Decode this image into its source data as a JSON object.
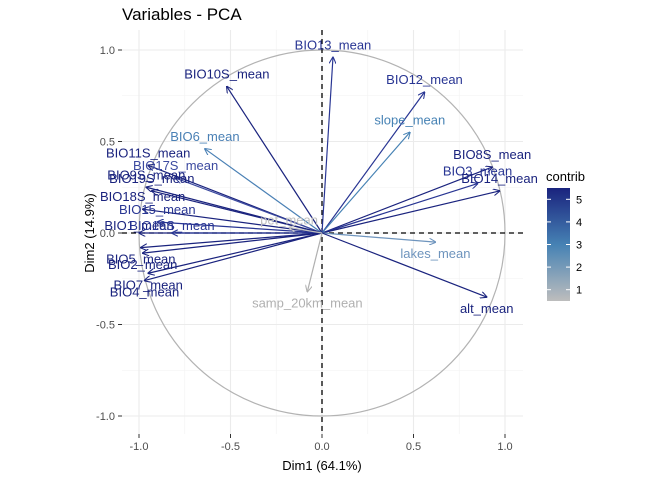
{
  "chart_data": {
    "type": "scatter",
    "subtype": "pca-variable-correlation-circle",
    "title": "Variables - PCA",
    "xlabel": "Dim1 (64.1%)",
    "ylabel": "Dim2 (14.9%)",
    "xlim": [
      -1.0,
      1.0
    ],
    "ylim": [
      -1.0,
      1.0
    ],
    "x_ticks": [
      -1.0,
      -0.5,
      0.0,
      0.5,
      1.0
    ],
    "y_ticks": [
      -1.0,
      -0.5,
      0.0,
      0.5,
      1.0
    ],
    "x_tick_labels": [
      "-1.0",
      "-0.5",
      "0.0",
      "0.5",
      "1.0"
    ],
    "y_tick_labels": [
      "-1.0",
      "-0.5",
      "0.0",
      "0.5",
      "1.0"
    ],
    "grid": true,
    "correlation_circle": true,
    "variables": [
      {
        "name": "BIO13_mean",
        "x": 0.06,
        "y": 0.96,
        "contrib": 5.0,
        "color": "#283593"
      },
      {
        "name": "BIO12_mean",
        "x": 0.56,
        "y": 0.77,
        "contrib": 5.1,
        "color": "#283593"
      },
      {
        "name": "BIO10S_mean",
        "x": -0.52,
        "y": 0.8,
        "contrib": 5.2,
        "color": "#1a237e"
      },
      {
        "name": "BIO6_mean",
        "x": -0.64,
        "y": 0.46,
        "contrib": 3.0,
        "color": "#4a80b5"
      },
      {
        "name": "slope_mean",
        "x": 0.48,
        "y": 0.55,
        "contrib": 3.1,
        "color": "#4682b4"
      },
      {
        "name": "BIO11S_mean",
        "x": -0.95,
        "y": 0.37,
        "contrib": 5.4,
        "color": "#1a237e"
      },
      {
        "name": "BIO17S_mean",
        "x": -0.8,
        "y": 0.3,
        "contrib": 3.8,
        "color": "#3c4aa0"
      },
      {
        "name": "BIO9S_mean",
        "x": -0.96,
        "y": 0.25,
        "contrib": 5.3,
        "color": "#1a237e"
      },
      {
        "name": "BIO19S_mean",
        "x": -0.93,
        "y": 0.23,
        "contrib": 5.2,
        "color": "#1a237e"
      },
      {
        "name": "BIO8S_mean",
        "x": 0.93,
        "y": 0.36,
        "contrib": 5.1,
        "color": "#1a237e"
      },
      {
        "name": "BIO3_mean",
        "x": 0.85,
        "y": 0.27,
        "contrib": 4.8,
        "color": "#283593"
      },
      {
        "name": "BIO14_mean",
        "x": 0.97,
        "y": 0.23,
        "contrib": 5.0,
        "color": "#1a237e"
      },
      {
        "name": "BIO18S_mean",
        "x": -0.98,
        "y": 0.13,
        "contrib": 5.1,
        "color": "#1a237e"
      },
      {
        "name": "BIO15_mean",
        "x": -0.9,
        "y": 0.06,
        "contrib": 4.6,
        "color": "#283593"
      },
      {
        "name": "BIO1_mean",
        "x": -1.0,
        "y": 0.0,
        "contrib": 5.5,
        "color": "#1a237e"
      },
      {
        "name": "BIO16S_mean",
        "x": -0.82,
        "y": 0.0,
        "contrib": 4.5,
        "color": "#283593"
      },
      {
        "name": "BIO5_mean",
        "x": -0.99,
        "y": -0.08,
        "contrib": 5.4,
        "color": "#1a237e"
      },
      {
        "name": "BIO2_mean",
        "x": -0.98,
        "y": -0.11,
        "contrib": 5.3,
        "color": "#1a237e"
      },
      {
        "name": "BIO7_mean",
        "x": -0.95,
        "y": -0.22,
        "contrib": 5.1,
        "color": "#1a237e"
      },
      {
        "name": "BIO4_mean",
        "x": -0.97,
        "y": -0.26,
        "contrib": 5.2,
        "color": "#1a237e"
      },
      {
        "name": "pet_mean",
        "x": -0.18,
        "y": 0.03,
        "contrib": 0.6,
        "color": "#c0c0c0"
      },
      {
        "name": "lakes_mean",
        "x": 0.62,
        "y": -0.05,
        "contrib": 2.3,
        "color": "#6e94bd"
      },
      {
        "name": "alt_mean",
        "x": 0.9,
        "y": -0.35,
        "contrib": 5.0,
        "color": "#1a237e"
      },
      {
        "name": "samp_20km_mean",
        "x": -0.08,
        "y": -0.32,
        "contrib": 0.9,
        "color": "#b0b0b0"
      }
    ],
    "legend": {
      "title": "contrib",
      "type": "continuous-gradient",
      "placement": "right",
      "ticks": [
        1,
        2,
        3,
        4,
        5
      ],
      "tick_labels": [
        "1",
        "2",
        "3",
        "4",
        "5"
      ],
      "low_color": "#bdbdbd",
      "mid_color": "#4682b4",
      "high_color": "#1a237e",
      "min": 0.5,
      "max": 5.5
    }
  }
}
